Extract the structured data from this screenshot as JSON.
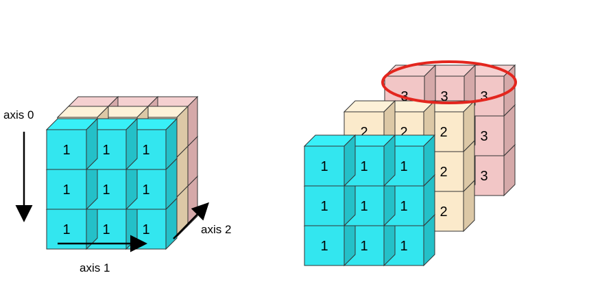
{
  "colors": {
    "layer1_front": "#33e6ef",
    "layer1_top": "#38f0f8",
    "layer1_side": "#24c0c8",
    "layer2_front": "#fbeacb",
    "layer2_top": "#fdf1d8",
    "layer2_side": "#dcc8a6",
    "layer3_front": "#f2c6c6",
    "layer3_top": "#f5d0d0",
    "layer3_side": "#d5a9a9",
    "stroke": "#333333",
    "highlight": "#e3261e"
  },
  "labels": {
    "axis0": "axis 0",
    "axis1": "axis 1",
    "axis2": "axis 2"
  },
  "left_stack": {
    "front_values": [
      [
        "1",
        "1",
        "1"
      ],
      [
        "1",
        "1",
        "1"
      ],
      [
        "1",
        "1",
        "1"
      ]
    ]
  },
  "right_stack": {
    "back_values": [
      [
        "3",
        "3",
        "3"
      ],
      [
        "",
        "",
        "3"
      ],
      [
        "",
        "",
        "3"
      ]
    ],
    "middle_values": [
      [
        "2",
        "2",
        "2"
      ],
      [
        "",
        "",
        "2"
      ],
      [
        "",
        "",
        "2"
      ]
    ],
    "front_values": [
      [
        "1",
        "1",
        "1"
      ],
      [
        "1",
        "1",
        "1"
      ],
      [
        "1",
        "1",
        "1"
      ]
    ]
  },
  "highlight": {
    "icon": "red-ellipse-outline"
  }
}
